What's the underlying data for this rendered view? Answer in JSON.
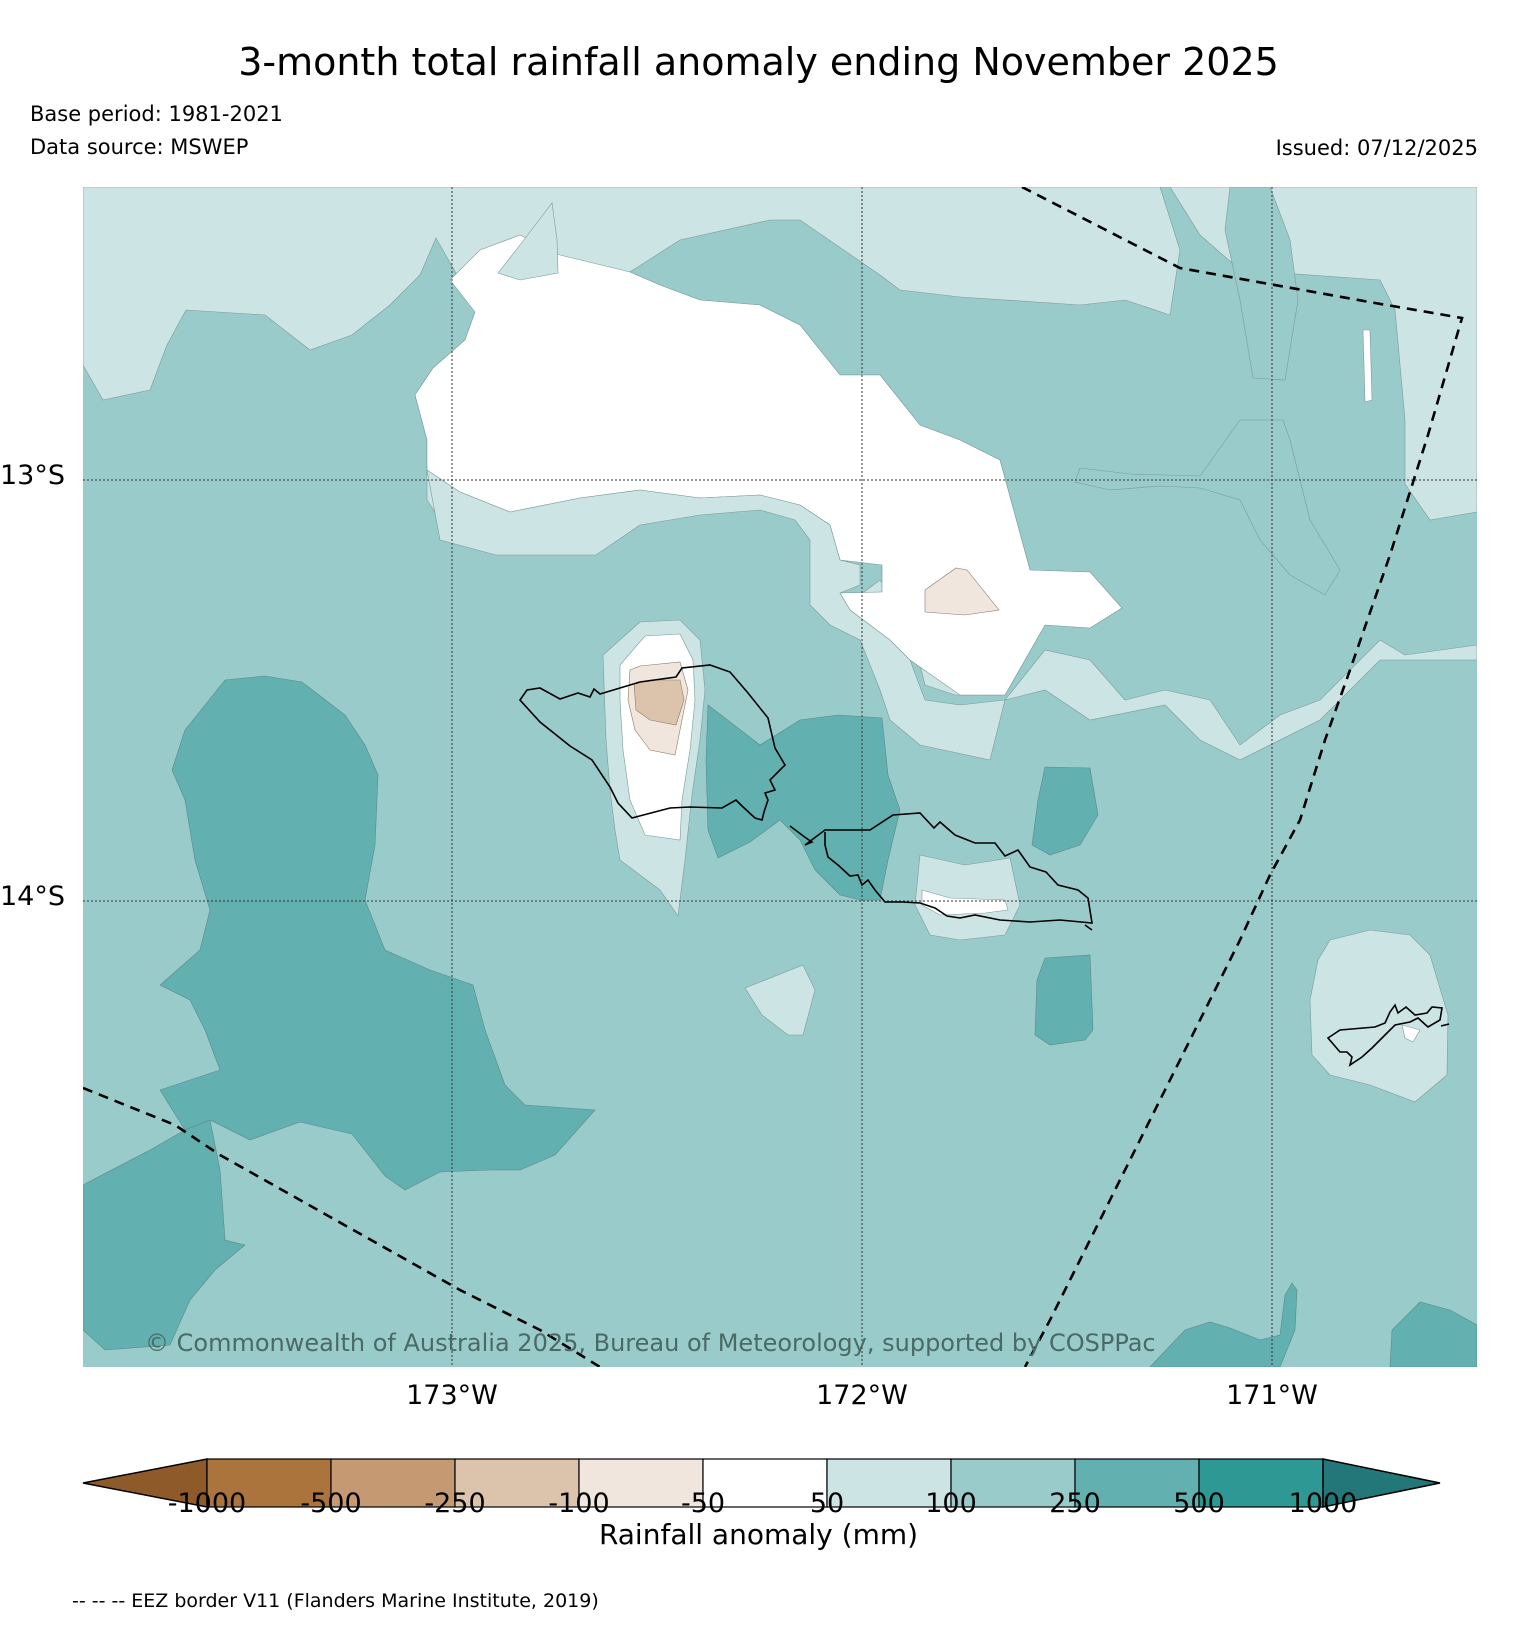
{
  "title": "3-month total rainfall anomaly ending November 2025",
  "base_period": "Base period: 1981-2021",
  "data_source": "Data source: MSWEP",
  "issued": "Issued: 07/12/2025",
  "copyright": "© Commonwealth of Australia 2025, Bureau of Meteorology, supported by COSPPac",
  "latitude_labels": [
    "13°S",
    "14°S"
  ],
  "longitude_labels": [
    "173°W",
    "172°W",
    "171°W"
  ],
  "colorbar": {
    "title": "Rainfall anomaly (mm)",
    "tick_labels": [
      "-1000",
      "-500",
      "-250",
      "-100",
      "-50",
      "50",
      "100",
      "250",
      "500",
      "1000"
    ],
    "colors": [
      "#8f5a2a",
      "#ac743d",
      "#c59a73",
      "#dcc3ab",
      "#f0e6dd",
      "#ffffff",
      "#cce4e3",
      "#9acbcb",
      "#63b0b0",
      "#2e9895",
      "#247778"
    ]
  },
  "footnote": "-- -- -- EEZ border V11 (Flanders Marine Institute, 2019)",
  "map_colors": {
    "land_outline": "#000000",
    "eez_line": "#000000",
    "class_50_100": "#cce4e3",
    "class_100_250": "#9acbcb",
    "class_250_500": "#63b0b0",
    "class_neg50_neg100": "#f0e6dd",
    "class_neg100_neg250": "#dcc3ab"
  }
}
